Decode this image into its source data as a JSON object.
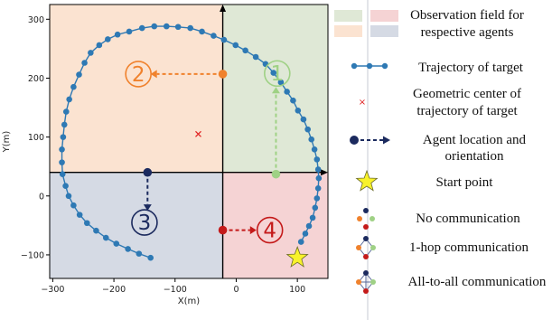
{
  "chart_data": {
    "type": "scatter",
    "title": "",
    "xlabel": "X(m)",
    "ylabel": "Y(m)",
    "xlim": [
      -305,
      150
    ],
    "ylim": [
      -140,
      325
    ],
    "xticks": [
      -300,
      -200,
      -100,
      0,
      100
    ],
    "yticks": [
      -100,
      0,
      100,
      200,
      300
    ],
    "xtick_labels": [
      "−300",
      "−200",
      "−100",
      "0",
      "100"
    ],
    "ytick_labels": [
      "−100",
      "0",
      "100",
      "200",
      "300"
    ],
    "grid": false,
    "axis_cross": {
      "x": -22,
      "y": 40
    },
    "regions": [
      {
        "agent": "1",
        "x_range": [
          -22,
          150
        ],
        "y_range": [
          40,
          325
        ],
        "color": "#dfe8d6"
      },
      {
        "agent": "2",
        "x_range": [
          -305,
          -22
        ],
        "y_range": [
          40,
          325
        ],
        "color": "#fbe3d1"
      },
      {
        "agent": "3",
        "x_range": [
          -305,
          -22
        ],
        "y_range": [
          -140,
          40
        ],
        "color": "#d5dae4"
      },
      {
        "agent": "4",
        "x_range": [
          -22,
          150
        ],
        "y_range": [
          -140,
          40
        ],
        "color": "#f5d3d4"
      }
    ],
    "trajectory": {
      "color": "#2e79b4",
      "points": [
        [
          -140,
          -105
        ],
        [
          -159,
          -98
        ],
        [
          -177,
          -90
        ],
        [
          -196,
          -81
        ],
        [
          -213,
          -71
        ],
        [
          -229,
          -59
        ],
        [
          -244,
          -46
        ],
        [
          -256,
          -32
        ],
        [
          -266,
          -16
        ],
        [
          -274,
          0
        ],
        [
          -279,
          17
        ],
        [
          -284,
          37
        ],
        [
          -285,
          57
        ],
        [
          -285,
          79
        ],
        [
          -283,
          100
        ],
        [
          -281,
          121
        ],
        [
          -278,
          143
        ],
        [
          -273,
          164
        ],
        [
          -266,
          185
        ],
        [
          -257,
          206
        ],
        [
          -248,
          226
        ],
        [
          -238,
          243
        ],
        [
          -224,
          256
        ],
        [
          -210,
          266
        ],
        [
          -194,
          274
        ],
        [
          -175,
          279
        ],
        [
          -154,
          285
        ],
        [
          -134,
          288
        ],
        [
          -114,
          288
        ],
        [
          -95,
          287
        ],
        [
          -75,
          285
        ],
        [
          -56,
          279
        ],
        [
          -37,
          272
        ],
        [
          -20,
          265
        ],
        [
          -1,
          256
        ],
        [
          15,
          247
        ],
        [
          32,
          236
        ],
        [
          48,
          224
        ],
        [
          61,
          209
        ],
        [
          73,
          193
        ],
        [
          83,
          177
        ],
        [
          93,
          162
        ],
        [
          101,
          145
        ],
        [
          110,
          130
        ],
        [
          117,
          113
        ],
        [
          123,
          96
        ],
        [
          128,
          79
        ],
        [
          132,
          62
        ],
        [
          134,
          45
        ],
        [
          135,
          30
        ],
        [
          134,
          13
        ],
        [
          132,
          -4
        ],
        [
          129,
          -20
        ],
        [
          125,
          -37
        ],
        [
          119,
          -51
        ],
        [
          113,
          -64
        ],
        [
          106,
          -78
        ]
      ]
    },
    "geometric_center": {
      "x": -62,
      "y": 105,
      "marker": "x",
      "color": "#e02020"
    },
    "start_point": {
      "x": 100,
      "y": -105,
      "color": "#f8f22a"
    },
    "agents": [
      {
        "label": "1",
        "x": 65,
        "y": 37,
        "dx": 0,
        "dy": 148,
        "color": "#9fd185",
        "label_x": 67,
        "label_y": 208
      },
      {
        "label": "2",
        "x": -22,
        "y": 207,
        "dx": -118,
        "dy": 0,
        "color": "#f0822d",
        "label_x": -160,
        "label_y": 207
      },
      {
        "label": "3",
        "x": -145,
        "y": 40,
        "dx": 0,
        "dy": -65,
        "color": "#1b2a5e",
        "label_x": -150,
        "label_y": -45
      },
      {
        "label": "4",
        "x": -22,
        "y": -58,
        "dx": 55,
        "dy": 0,
        "color": "#c41a1a",
        "label_x": 55,
        "label_y": -58
      }
    ]
  },
  "legend": {
    "observation_field": "Observation field for respective agents",
    "observation_colors": [
      "#dfe8d6",
      "#f5d3d4",
      "#fbe3d1",
      "#d5dae4"
    ],
    "trajectory": "Trajectory of target",
    "geometric_center": "Geometric center of trajectory of target",
    "agent": "Agent location and orientation",
    "start": "Start point",
    "no_comm": "No communication",
    "one_hop": "1-hop communication",
    "all_to_all": "All-to-all communication",
    "node_colors": [
      "#1b2a5e",
      "#f0822d",
      "#9fd185",
      "#c41a1a"
    ],
    "ring_color": "#5a6a9a"
  }
}
